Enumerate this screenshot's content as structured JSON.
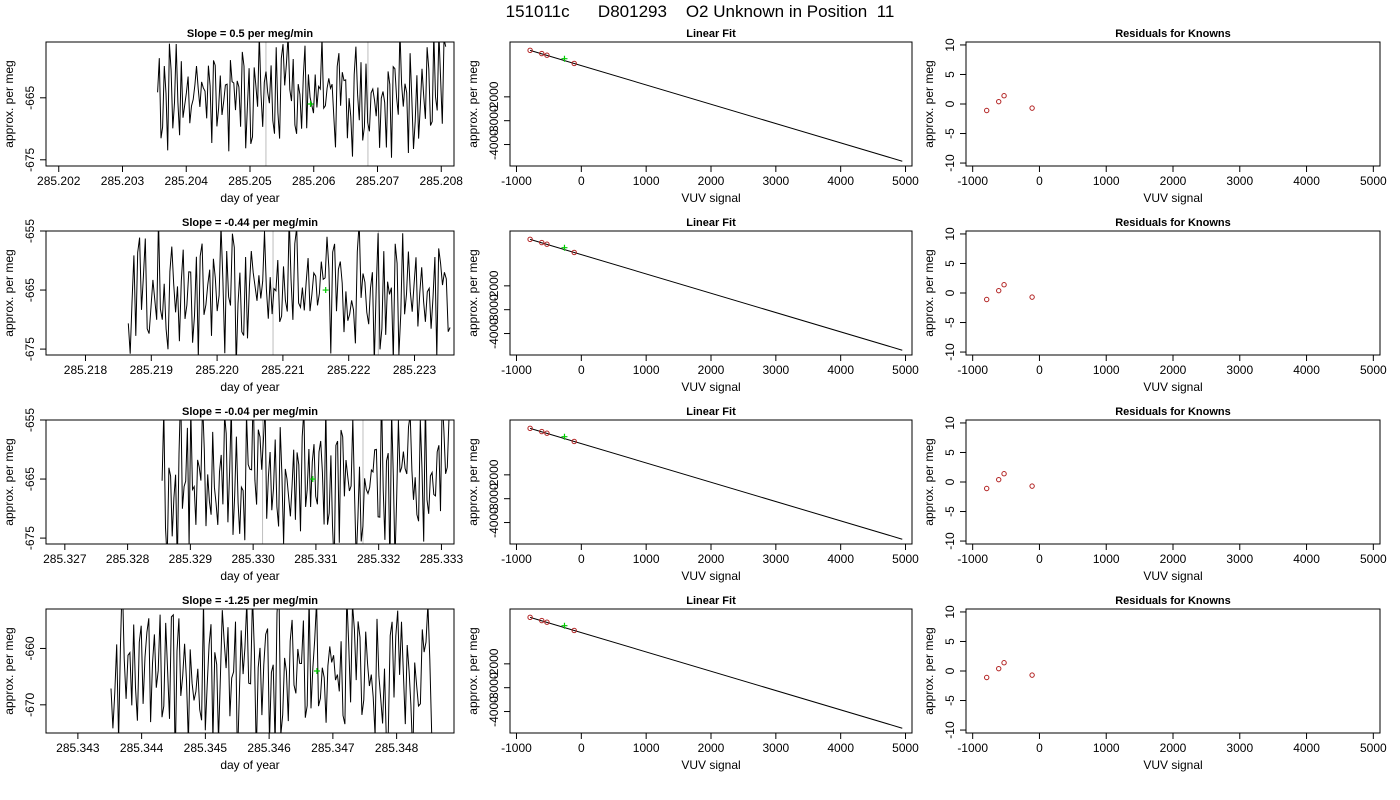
{
  "title": "151011c      D801293    O2 Unknown in Position  11",
  "colors": {
    "line": "#000000",
    "fit_point": "#b22222",
    "unknown_point": "#00cc00",
    "marker_line": "#bebebe"
  },
  "chart_data": [
    {
      "type": "line",
      "panel": "time-series",
      "row": 1,
      "title": "Slope =  0.5  per meg/min",
      "xlabel": "day of year",
      "ylabel": "approx. per meg",
      "xlim": [
        285.2018,
        285.2082
      ],
      "ylim": [
        -676,
        -656
      ],
      "xticks": [
        "285.202",
        "285.203",
        "285.204",
        "285.205",
        "285.206",
        "285.207",
        "285.208"
      ],
      "yticks": [
        -675,
        -665
      ],
      "trace_x_range": [
        285.20355,
        285.20807
      ],
      "trace_center": -664,
      "trace_amplitude": 9,
      "marker_lines_x": [
        285.20525,
        285.20685
      ],
      "unknown_point": {
        "x": 285.20595,
        "y": -666
      }
    },
    {
      "type": "scatter",
      "panel": "linear-fit",
      "row": 1,
      "title": "Linear Fit",
      "xlabel": "VUV signal",
      "ylabel": "approx. per meg",
      "xlim": [
        -1100,
        5100
      ],
      "ylim": [
        -4900,
        300
      ],
      "xticks": [
        -1000,
        0,
        1000,
        2000,
        3000,
        4000,
        5000
      ],
      "yticks": [
        -2000,
        -3000,
        -4000
      ],
      "fit_line": {
        "x": [
          -790,
          4950
        ],
        "y": [
          -50,
          -4700
        ]
      },
      "knowns": [
        {
          "x": -790,
          "y": -50
        },
        {
          "x": -610,
          "y": -185
        },
        {
          "x": -530,
          "y": -255
        },
        {
          "x": -110,
          "y": -600
        }
      ],
      "unknown": {
        "x": -260,
        "y": -400
      }
    },
    {
      "type": "scatter",
      "panel": "residuals",
      "row": 1,
      "title": "Residuals for Knowns",
      "xlabel": "VUV signal",
      "ylabel": "approx. per meg",
      "xlim": [
        -1100,
        5100
      ],
      "ylim": [
        -10.5,
        10.5
      ],
      "xticks": [
        -1000,
        0,
        1000,
        2000,
        3000,
        4000,
        5000
      ],
      "yticks": [
        -10,
        -5,
        0,
        5,
        10
      ],
      "residuals": [
        {
          "x": -790,
          "y": -1.1
        },
        {
          "x": -610,
          "y": 0.4
        },
        {
          "x": -530,
          "y": 1.4
        },
        {
          "x": -110,
          "y": -0.7
        }
      ]
    },
    {
      "type": "line",
      "panel": "time-series",
      "row": 2,
      "title": "Slope =  -0.44  per meg/min",
      "xlabel": "day of year",
      "ylabel": "approx. per meg",
      "xlim": [
        285.2174,
        285.2236
      ],
      "ylim": [
        -676,
        -655
      ],
      "xticks": [
        "285.218",
        "285.219",
        "285.220",
        "285.221",
        "285.222",
        "285.223"
      ],
      "yticks": [
        -675,
        -665,
        -655
      ],
      "trace_x_range": [
        285.21865,
        285.22354
      ],
      "trace_center": -665,
      "trace_amplitude": 11,
      "marker_lines_x": [
        285.22085,
        285.22245
      ],
      "unknown_point": {
        "x": 285.22165,
        "y": -665
      }
    },
    {
      "type": "scatter",
      "panel": "linear-fit",
      "row": 2,
      "title": "Linear Fit",
      "xlabel": "VUV signal",
      "ylabel": "approx. per meg",
      "xlim": [
        -1100,
        5100
      ],
      "ylim": [
        -4900,
        300
      ],
      "xticks": [
        -1000,
        0,
        1000,
        2000,
        3000,
        4000,
        5000
      ],
      "yticks": [
        -2000,
        -3000,
        -4000
      ],
      "fit_line": {
        "x": [
          -790,
          4950
        ],
        "y": [
          -50,
          -4700
        ]
      },
      "knowns": [
        {
          "x": -790,
          "y": -50
        },
        {
          "x": -610,
          "y": -185
        },
        {
          "x": -530,
          "y": -255
        },
        {
          "x": -110,
          "y": -600
        }
      ],
      "unknown": {
        "x": -260,
        "y": -400
      }
    },
    {
      "type": "scatter",
      "panel": "residuals",
      "row": 2,
      "title": "Residuals for Knowns",
      "xlabel": "VUV signal",
      "ylabel": "approx. per meg",
      "xlim": [
        -1100,
        5100
      ],
      "ylim": [
        -10.5,
        10.5
      ],
      "xticks": [
        -1000,
        0,
        1000,
        2000,
        3000,
        4000,
        5000
      ],
      "yticks": [
        -10,
        -5,
        0,
        5,
        10
      ],
      "residuals": [
        {
          "x": -790,
          "y": -1.1
        },
        {
          "x": -610,
          "y": 0.4
        },
        {
          "x": -530,
          "y": 1.4
        },
        {
          "x": -110,
          "y": -0.7
        }
      ]
    },
    {
      "type": "line",
      "panel": "time-series",
      "row": 3,
      "title": "Slope =  -0.04  per meg/min",
      "xlabel": "day of year",
      "ylabel": "approx. per meg",
      "xlim": [
        285.3267,
        285.3332
      ],
      "ylim": [
        -676,
        -655
      ],
      "xticks": [
        "285.327",
        "285.328",
        "285.329",
        "285.330",
        "285.331",
        "285.332",
        "285.333"
      ],
      "yticks": [
        -675,
        -665,
        -655
      ],
      "trace_x_range": [
        285.32855,
        285.33312
      ],
      "trace_center": -665,
      "trace_amplitude": 13,
      "marker_lines_x": [
        285.33015,
        285.33175
      ],
      "unknown_point": {
        "x": 285.33095,
        "y": -665
      }
    },
    {
      "type": "scatter",
      "panel": "linear-fit",
      "row": 3,
      "title": "Linear Fit",
      "xlabel": "VUV signal",
      "ylabel": "approx. per meg",
      "xlim": [
        -1100,
        5100
      ],
      "ylim": [
        -4900,
        300
      ],
      "xticks": [
        -1000,
        0,
        1000,
        2000,
        3000,
        4000,
        5000
      ],
      "yticks": [
        -2000,
        -3000,
        -4000
      ],
      "fit_line": {
        "x": [
          -790,
          4950
        ],
        "y": [
          -50,
          -4700
        ]
      },
      "knowns": [
        {
          "x": -790,
          "y": -50
        },
        {
          "x": -610,
          "y": -185
        },
        {
          "x": -530,
          "y": -255
        },
        {
          "x": -110,
          "y": -600
        }
      ],
      "unknown": {
        "x": -260,
        "y": -400
      }
    },
    {
      "type": "scatter",
      "panel": "residuals",
      "row": 3,
      "title": "Residuals for Knowns",
      "xlabel": "VUV signal",
      "ylabel": "approx. per meg",
      "xlim": [
        -1100,
        5100
      ],
      "ylim": [
        -10.5,
        10.5
      ],
      "xticks": [
        -1000,
        0,
        1000,
        2000,
        3000,
        4000,
        5000
      ],
      "yticks": [
        -10,
        -5,
        0,
        5,
        10
      ],
      "residuals": [
        {
          "x": -790,
          "y": -1.1
        },
        {
          "x": -610,
          "y": 0.4
        },
        {
          "x": -530,
          "y": 1.4
        },
        {
          "x": -110,
          "y": -0.7
        }
      ]
    },
    {
      "type": "line",
      "panel": "time-series",
      "row": 4,
      "title": "Slope =  -1.25  per meg/min",
      "xlabel": "day of year",
      "ylabel": "approx. per meg",
      "xlim": [
        285.3425,
        285.3489
      ],
      "ylim": [
        -675,
        -653
      ],
      "xticks": [
        "285.343",
        "285.344",
        "285.345",
        "285.346",
        "285.347",
        "285.348"
      ],
      "yticks": [
        -670,
        -660
      ],
      "trace_x_range": [
        285.34352,
        285.34855
      ],
      "trace_center": -664,
      "trace_amplitude": 14,
      "marker_lines_x": [],
      "unknown_point": {
        "x": 285.34675,
        "y": -664
      }
    },
    {
      "type": "scatter",
      "panel": "linear-fit",
      "row": 4,
      "title": "Linear Fit",
      "xlabel": "VUV signal",
      "ylabel": "approx. per meg",
      "xlim": [
        -1100,
        5100
      ],
      "ylim": [
        -4900,
        300
      ],
      "xticks": [
        -1000,
        0,
        1000,
        2000,
        3000,
        4000,
        5000
      ],
      "yticks": [
        -2000,
        -3000,
        -4000
      ],
      "fit_line": {
        "x": [
          -790,
          4950
        ],
        "y": [
          -50,
          -4700
        ]
      },
      "knowns": [
        {
          "x": -790,
          "y": -50
        },
        {
          "x": -610,
          "y": -185
        },
        {
          "x": -530,
          "y": -255
        },
        {
          "x": -110,
          "y": -600
        }
      ],
      "unknown": {
        "x": -260,
        "y": -400
      }
    },
    {
      "type": "scatter",
      "panel": "residuals",
      "row": 4,
      "title": "Residuals for Knowns",
      "xlabel": "VUV signal",
      "ylabel": "approx. per meg",
      "xlim": [
        -1100,
        5100
      ],
      "ylim": [
        -10.5,
        10.5
      ],
      "xticks": [
        -1000,
        0,
        1000,
        2000,
        3000,
        4000,
        5000
      ],
      "yticks": [
        -10,
        -5,
        0,
        5,
        10
      ],
      "residuals": [
        {
          "x": -790,
          "y": -1.1
        },
        {
          "x": -610,
          "y": 0.4
        },
        {
          "x": -530,
          "y": 1.4
        },
        {
          "x": -110,
          "y": -0.7
        }
      ]
    }
  ]
}
